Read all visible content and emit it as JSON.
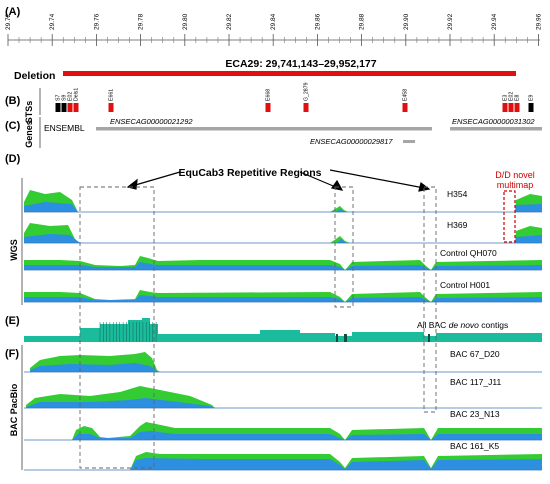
{
  "panels": {
    "a": "(A)",
    "b": "(B)",
    "c": "(C)",
    "d": "(D)",
    "e": "(E)",
    "f": "(F)"
  },
  "axis_ticks": [
    "29.72",
    "29.74",
    "29.76",
    "29.78",
    "29.80",
    "29.82",
    "29.84",
    "29.86",
    "29.88",
    "29.90",
    "29.92",
    "29.94",
    "29.96"
  ],
  "deletion": {
    "label": "Deletion",
    "coords": "ECA29: 29,741,143–29,952,177",
    "color": "#e01010"
  },
  "sts_label": "STSs",
  "sts": [
    {
      "name": "S7",
      "color": "#000000"
    },
    {
      "name": "S9",
      "color": "#000000"
    },
    {
      "name": "E02",
      "color": "#e01010"
    },
    {
      "name": "Dels1",
      "color": "#e01010"
    },
    {
      "name": "E661",
      "color": "#e01010"
    },
    {
      "name": "E668",
      "color": "#e01010"
    },
    {
      "name": "G_2879",
      "color": "#e01010"
    },
    {
      "name": "E458",
      "color": "#e01010"
    },
    {
      "name": "E3",
      "color": "#e01010"
    },
    {
      "name": "E02",
      "color": "#e01010"
    },
    {
      "name": "E8",
      "color": "#e01010"
    },
    {
      "name": "E9",
      "color": "#000000"
    }
  ],
  "genes_label": "Genes",
  "ensembl_label": "ENSEMBL",
  "genes": [
    "ENSECAG00000021292",
    "ENSECAG00000029817",
    "ENSECAG00000031302"
  ],
  "repetitive_label": "EquCab3 Repetitive Regions",
  "dd_label_line1": "D/D novel",
  "dd_label_line2": "multimap",
  "wgs_label": "WGS",
  "wgs_tracks": [
    "H354",
    "H369",
    "Control QH070",
    "Control H001"
  ],
  "bac_denovo_label": "All BAC de novo contigs",
  "bac_denovo_prefix": "All BAC ",
  "bac_denovo_italic": "de novo",
  "bac_denovo_suffix": " contigs",
  "pacbio_label": "BAC PacBio",
  "pacbio_tracks": [
    "BAC 67_D20",
    "BAC 117_J11",
    "BAC 23_N13",
    "BAC 161_K5"
  ],
  "colors": {
    "green": "#33cc33",
    "blue": "#2d8fe0",
    "teal": "#1abc9c",
    "grey": "#a6a6a6",
    "red": "#d00000"
  }
}
